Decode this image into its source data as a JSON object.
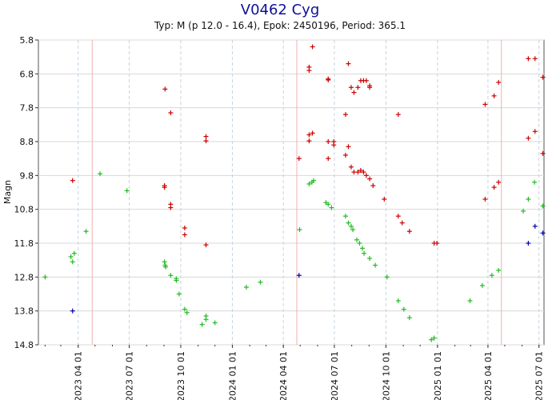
{
  "chart_data": {
    "type": "scatter",
    "title": "V0462 Cyg",
    "subtitle": "Typ: M (p 12.0 - 16.4), Epok: 2450196, Period: 365.1",
    "xlabel": "",
    "ylabel": "Magn",
    "ylim": [
      14.8,
      5.8
    ],
    "y_ticks": [
      "5.8",
      "6.8",
      "7.8",
      "8.8",
      "9.8",
      "10.8",
      "11.8",
      "12.8",
      "13.8",
      "14.8"
    ],
    "xlim": [
      "2023-01-20",
      "2025-07-10"
    ],
    "x_ticks": [
      {
        "date": "2023-04-01",
        "label": "2023 04 01"
      },
      {
        "date": "2023-07-01",
        "label": "2023 07 01"
      },
      {
        "date": "2023-10-01",
        "label": "2023 10 01"
      },
      {
        "date": "2024-01-01",
        "label": "2024 01 01"
      },
      {
        "date": "2024-04-01",
        "label": "2024 04 01"
      },
      {
        "date": "2024-07-01",
        "label": "2024 07 01"
      },
      {
        "date": "2024-10-01",
        "label": "2024 10 01"
      },
      {
        "date": "2025-01-01",
        "label": "2025 01 01"
      },
      {
        "date": "2025-04-01",
        "label": "2025 04 01"
      },
      {
        "date": "2025-07-01",
        "label": "2025 07 01"
      }
    ],
    "grid": true,
    "minima_lines": [
      "2023-04-26",
      "2024-04-25",
      "2025-04-25"
    ],
    "series": [
      {
        "color": "#cc0000",
        "points": [
          [
            "2023-03-22",
            9.95
          ],
          [
            "2023-09-03",
            7.25
          ],
          [
            "2023-09-02",
            10.1
          ],
          [
            "2023-09-02",
            10.15
          ],
          [
            "2023-09-13",
            7.95
          ],
          [
            "2023-09-13",
            10.65
          ],
          [
            "2023-09-13",
            10.75
          ],
          [
            "2023-10-08",
            11.35
          ],
          [
            "2023-10-08",
            11.55
          ],
          [
            "2023-11-15",
            8.65
          ],
          [
            "2023-11-15",
            8.78
          ],
          [
            "2023-11-15",
            11.85
          ],
          [
            "2024-04-29",
            9.3
          ],
          [
            "2024-05-17",
            6.6
          ],
          [
            "2024-05-17",
            6.7
          ],
          [
            "2024-05-17",
            8.6
          ],
          [
            "2024-05-17",
            8.78
          ],
          [
            "2024-05-23",
            6.0
          ],
          [
            "2024-05-23",
            8.55
          ],
          [
            "2024-06-20",
            6.95
          ],
          [
            "2024-06-20",
            6.98
          ],
          [
            "2024-06-20",
            8.8
          ],
          [
            "2024-06-20",
            9.3
          ],
          [
            "2024-06-30",
            8.8
          ],
          [
            "2024-06-30",
            8.9
          ],
          [
            "2024-07-21",
            8.0
          ],
          [
            "2024-07-21",
            9.2
          ],
          [
            "2024-07-26",
            6.5
          ],
          [
            "2024-07-26",
            8.95
          ],
          [
            "2024-07-31",
            7.2
          ],
          [
            "2024-07-31",
            9.55
          ],
          [
            "2024-08-05",
            7.35
          ],
          [
            "2024-08-05",
            9.7
          ],
          [
            "2024-08-12",
            7.2
          ],
          [
            "2024-08-12",
            9.7
          ],
          [
            "2024-08-17",
            7.0
          ],
          [
            "2024-08-17",
            9.65
          ],
          [
            "2024-08-22",
            7.0
          ],
          [
            "2024-08-22",
            9.7
          ],
          [
            "2024-08-27",
            7.0
          ],
          [
            "2024-08-27",
            9.8
          ],
          [
            "2024-09-02",
            7.15
          ],
          [
            "2024-09-02",
            7.2
          ],
          [
            "2024-09-02",
            9.9
          ],
          [
            "2024-09-08",
            10.1
          ],
          [
            "2024-09-28",
            10.5
          ],
          [
            "2024-10-23",
            8.0
          ],
          [
            "2024-10-23",
            11.0
          ],
          [
            "2024-10-30",
            11.2
          ],
          [
            "2024-11-12",
            11.45
          ],
          [
            "2024-12-26",
            11.8
          ],
          [
            "2024-12-31",
            11.8
          ],
          [
            "2025-03-27",
            7.7
          ],
          [
            "2025-03-27",
            10.5
          ],
          [
            "2025-04-12",
            7.45
          ],
          [
            "2025-04-12",
            10.15
          ],
          [
            "2025-04-20",
            7.05
          ],
          [
            "2025-04-20",
            10.0
          ],
          [
            "2025-06-12",
            6.35
          ],
          [
            "2025-06-12",
            8.7
          ],
          [
            "2025-06-24",
            6.35
          ],
          [
            "2025-06-24",
            8.5
          ],
          [
            "2025-07-08",
            6.9
          ],
          [
            "2025-07-08",
            9.15
          ]
        ]
      },
      {
        "color": "#22bb22",
        "points": [
          [
            "2023-02-01",
            12.8
          ],
          [
            "2023-03-19",
            12.2
          ],
          [
            "2023-03-22",
            12.35
          ],
          [
            "2023-03-25",
            12.1
          ],
          [
            "2023-04-15",
            11.45
          ],
          [
            "2023-05-10",
            9.75
          ],
          [
            "2023-06-27",
            10.25
          ],
          [
            "2023-09-03",
            12.45
          ],
          [
            "2023-09-04",
            12.5
          ],
          [
            "2023-09-02",
            12.35
          ],
          [
            "2023-09-13",
            12.75
          ],
          [
            "2023-09-23",
            12.85
          ],
          [
            "2023-09-23",
            12.9
          ],
          [
            "2023-09-28",
            13.3
          ],
          [
            "2023-10-08",
            13.75
          ],
          [
            "2023-10-12",
            13.85
          ],
          [
            "2023-11-08",
            14.2
          ],
          [
            "2023-11-15",
            14.05
          ],
          [
            "2023-11-15",
            13.95
          ],
          [
            "2023-12-01",
            14.15
          ],
          [
            "2024-01-26",
            13.1
          ],
          [
            "2024-02-20",
            12.95
          ],
          [
            "2024-04-30",
            11.4
          ],
          [
            "2024-05-17",
            10.05
          ],
          [
            "2024-05-22",
            10.0
          ],
          [
            "2024-05-25",
            9.95
          ],
          [
            "2024-06-16",
            10.6
          ],
          [
            "2024-06-20",
            10.65
          ],
          [
            "2024-06-26",
            10.75
          ],
          [
            "2024-07-21",
            11.0
          ],
          [
            "2024-07-26",
            11.2
          ],
          [
            "2024-07-31",
            11.3
          ],
          [
            "2024-08-03",
            11.4
          ],
          [
            "2024-08-10",
            11.7
          ],
          [
            "2024-08-15",
            11.8
          ],
          [
            "2024-08-20",
            11.95
          ],
          [
            "2024-08-23",
            12.1
          ],
          [
            "2024-09-02",
            12.25
          ],
          [
            "2024-09-12",
            12.45
          ],
          [
            "2024-10-03",
            12.8
          ],
          [
            "2024-10-23",
            13.5
          ],
          [
            "2024-11-02",
            13.75
          ],
          [
            "2024-11-12",
            14.0
          ],
          [
            "2024-12-21",
            14.65
          ],
          [
            "2024-12-26",
            14.6
          ],
          [
            "2025-02-28",
            13.5
          ],
          [
            "2025-03-22",
            13.05
          ],
          [
            "2025-04-08",
            12.75
          ],
          [
            "2025-04-20",
            12.6
          ],
          [
            "2025-06-03",
            10.85
          ],
          [
            "2025-06-12",
            10.5
          ],
          [
            "2025-06-23",
            10.0
          ],
          [
            "2025-07-08",
            10.7
          ]
        ]
      },
      {
        "color": "#0000aa",
        "points": [
          [
            "2023-03-22",
            13.8
          ],
          [
            "2024-04-29",
            12.75
          ],
          [
            "2025-06-12",
            11.8
          ],
          [
            "2025-06-24",
            11.3
          ],
          [
            "2025-07-08",
            11.5
          ]
        ]
      }
    ]
  }
}
